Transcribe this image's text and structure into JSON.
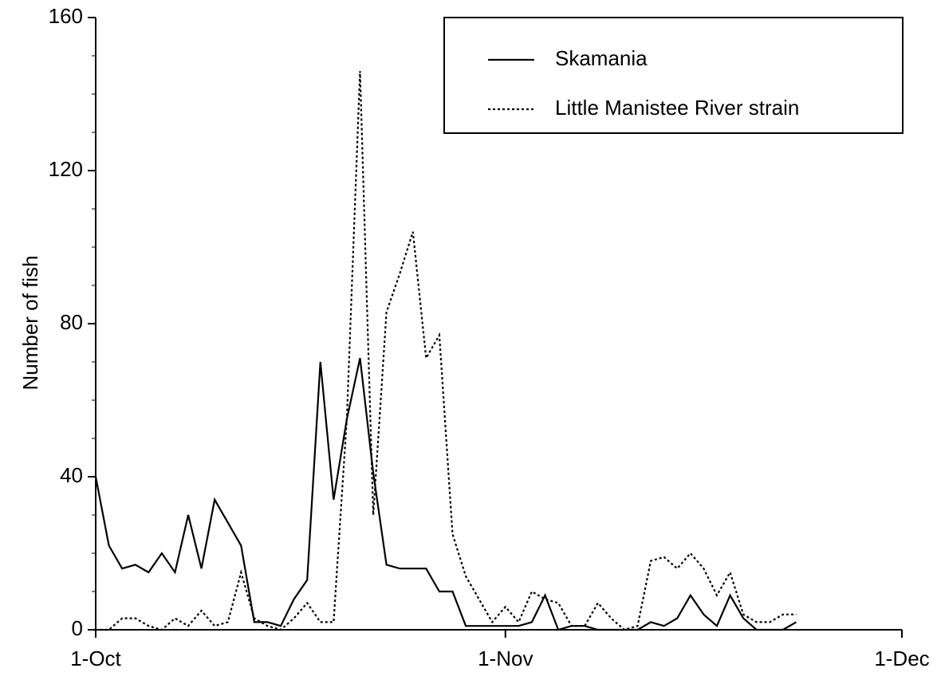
{
  "chart_data": {
    "type": "line",
    "y_label": "Number of fish",
    "xlim": [
      0,
      61
    ],
    "xticks": [
      {
        "value": 0,
        "label": "1-Oct"
      },
      {
        "value": 31,
        "label": "1-Nov"
      },
      {
        "value": 61,
        "label": "1-Dec"
      }
    ],
    "ylim": [
      0,
      160
    ],
    "yticks": [
      0,
      40,
      80,
      120,
      160
    ],
    "yticks_minor": [
      10,
      20,
      30,
      50,
      60,
      70,
      90,
      100,
      110,
      130,
      140,
      150
    ],
    "legend": "top-right",
    "series": [
      {
        "name": "Skamania",
        "color": "#000000",
        "dash": "solid",
        "x": [
          0,
          1,
          2,
          3,
          4,
          5,
          6,
          7,
          8,
          9,
          10,
          11,
          12,
          13,
          14,
          15,
          16,
          17,
          18,
          19,
          20,
          21,
          22,
          23,
          24,
          25,
          26,
          27,
          28,
          29,
          30,
          31,
          32,
          33,
          34,
          35,
          36,
          37,
          38,
          39,
          40,
          41,
          42,
          43,
          44,
          45,
          46,
          47,
          48,
          49,
          50,
          51,
          52,
          53
        ],
        "values": [
          40,
          22,
          16,
          17,
          15,
          20,
          15,
          30,
          16,
          34,
          28,
          22,
          2,
          2,
          1,
          8,
          13,
          70,
          34,
          55,
          71,
          41,
          17,
          16,
          16,
          16,
          10,
          10,
          1,
          1,
          1,
          1,
          1,
          2,
          9,
          0,
          1,
          1,
          0,
          0,
          0,
          0,
          2,
          1,
          3,
          9,
          4,
          1,
          9,
          3,
          0,
          0,
          0,
          2
        ]
      },
      {
        "name": "Little Manistee River strain",
        "color": "#000000",
        "dash": "dotted",
        "x": [
          0,
          1,
          2,
          3,
          4,
          5,
          6,
          7,
          8,
          9,
          10,
          11,
          12,
          13,
          14,
          15,
          16,
          17,
          18,
          19,
          20,
          21,
          22,
          23,
          24,
          25,
          26,
          27,
          28,
          29,
          30,
          31,
          32,
          33,
          34,
          35,
          36,
          37,
          38,
          39,
          40,
          41,
          42,
          43,
          44,
          45,
          46,
          47,
          48,
          49,
          50,
          51,
          52,
          53
        ],
        "values": [
          0,
          0,
          3,
          3,
          1,
          0,
          3,
          1,
          5,
          1,
          2,
          15,
          3,
          1,
          0,
          3,
          7,
          2,
          2,
          55,
          146,
          30,
          83,
          93,
          104,
          71,
          77,
          25,
          14,
          8,
          2,
          6,
          2,
          10,
          8,
          7,
          1,
          1,
          7,
          3,
          0,
          1,
          18,
          19,
          16,
          20,
          16,
          9,
          15,
          4,
          2,
          2,
          4,
          4
        ]
      }
    ]
  }
}
